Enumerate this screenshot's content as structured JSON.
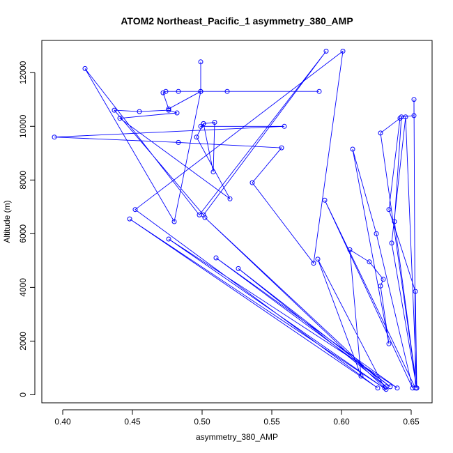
{
  "chart_data": {
    "type": "line",
    "title": "ATOM2 Northeast_Pacific_1 asymmetry_380_AMP",
    "xlabel": "asymmetry_380_AMP",
    "ylabel": "Altitude (m)",
    "xlim": [
      0.385,
      0.665
    ],
    "ylim": [
      -300,
      13200
    ],
    "x_ticks": [
      0.4,
      0.45,
      0.5,
      0.55,
      0.6,
      0.65
    ],
    "x_tick_labels": [
      "0.40",
      "0.45",
      "0.50",
      "0.55",
      "0.60",
      "0.65"
    ],
    "y_ticks": [
      0,
      2000,
      4000,
      6000,
      8000,
      10000,
      12000
    ],
    "y_tick_labels": [
      "0",
      "2000",
      "4000",
      "6000",
      "8000",
      "10000",
      "12000"
    ],
    "grid": false,
    "legend": "none",
    "series": [
      {
        "color": "#0000ff",
        "marker": "open-circle",
        "points": [
          [
            0.499,
            12400
          ],
          [
            0.499,
            11300
          ],
          [
            0.476,
            10650
          ],
          [
            0.472,
            11250
          ],
          [
            0.474,
            11300
          ],
          [
            0.483,
            11300
          ],
          [
            0.584,
            11300
          ],
          [
            0.518,
            11300
          ],
          [
            0.499,
            11300
          ],
          [
            0.48,
            6450
          ],
          [
            0.416,
            12150
          ],
          [
            0.498,
            6700
          ],
          [
            0.589,
            12800
          ],
          [
            0.501,
            6700
          ],
          [
            0.437,
            10600
          ],
          [
            0.455,
            10550
          ],
          [
            0.476,
            10600
          ],
          [
            0.482,
            10500
          ],
          [
            0.441,
            10300
          ],
          [
            0.52,
            7300
          ],
          [
            0.496,
            9600
          ],
          [
            0.501,
            10100
          ],
          [
            0.509,
            10150
          ],
          [
            0.508,
            8300
          ],
          [
            0.501,
            10100
          ],
          [
            0.499,
            10000
          ],
          [
            0.559,
            10000
          ],
          [
            0.394,
            9600
          ],
          [
            0.483,
            9400
          ],
          [
            0.557,
            9200
          ],
          [
            0.536,
            7900
          ],
          [
            0.58,
            4900
          ],
          [
            0.601,
            12800
          ],
          [
            0.452,
            6900
          ],
          [
            0.626,
            250
          ],
          [
            0.448,
            6550
          ],
          [
            0.632,
            200
          ],
          [
            0.476,
            5800
          ],
          [
            0.64,
            250
          ],
          [
            0.51,
            5100
          ],
          [
            0.635,
            300
          ],
          [
            0.526,
            4700
          ],
          [
            0.632,
            300
          ],
          [
            0.502,
            6600
          ],
          [
            0.631,
            250
          ],
          [
            0.583,
            5050
          ],
          [
            0.614,
            700
          ],
          [
            0.606,
            5400
          ],
          [
            0.62,
            4950
          ],
          [
            0.63,
            4300
          ],
          [
            0.628,
            4050
          ],
          [
            0.634,
            1900
          ],
          [
            0.608,
            9150
          ],
          [
            0.625,
            6000
          ],
          [
            0.651,
            250
          ],
          [
            0.588,
            7250
          ],
          [
            0.653,
            250
          ],
          [
            0.652,
            11000
          ],
          [
            0.652,
            10400
          ],
          [
            0.643,
            10350
          ],
          [
            0.638,
            6450
          ],
          [
            0.654,
            250
          ],
          [
            0.646,
            10350
          ],
          [
            0.636,
            5650
          ],
          [
            0.654,
            250
          ],
          [
            0.628,
            9750
          ],
          [
            0.642,
            10300
          ],
          [
            0.634,
            6900
          ],
          [
            0.653,
            3850
          ],
          [
            0.654,
            250
          ]
        ]
      }
    ]
  }
}
